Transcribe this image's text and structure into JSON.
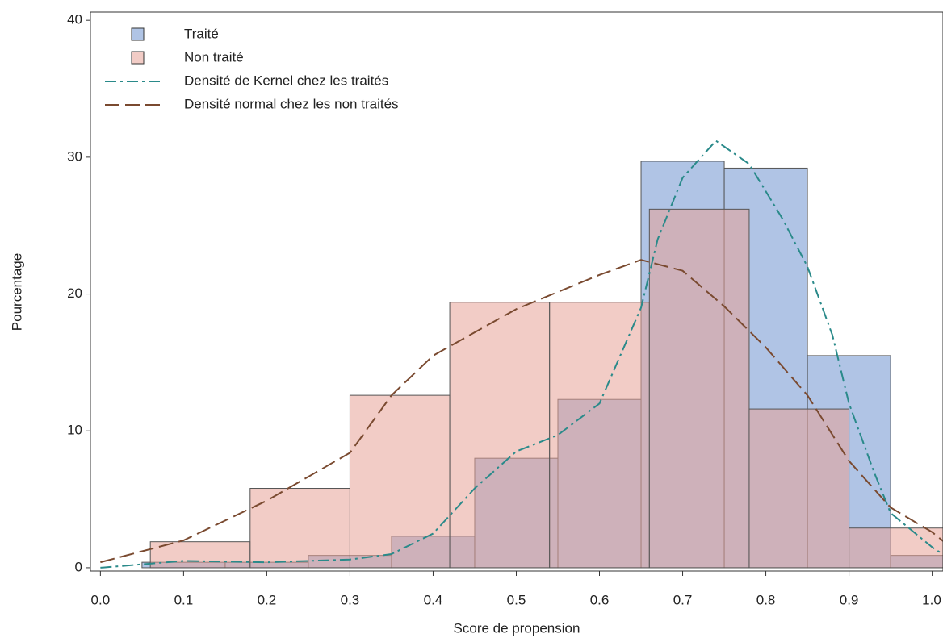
{
  "chart_data": {
    "type": "histogram",
    "x_label": "Score de propension",
    "y_label": "Pourcentage",
    "xlim": [
      -0.012,
      1.013
    ],
    "ylim": [
      -0.24,
      40.6
    ],
    "xticks": [
      {
        "value": 0,
        "label": "0.0"
      },
      0.1,
      0.2,
      0.3,
      0.4,
      0.5,
      0.6,
      0.7,
      0.8,
      0.9,
      {
        "value": 1,
        "label": "1.0"
      }
    ],
    "yticks": [
      0,
      10,
      20,
      30,
      40
    ],
    "legend": "top-left",
    "series": [
      {
        "name": "Traité",
        "kind": "bar",
        "color": "#6f93cf",
        "bins": [
          0.05,
          0.15,
          0.25,
          0.35,
          0.45,
          0.55,
          0.65,
          0.75,
          0.85,
          0.95,
          1.05
        ],
        "values": [
          0.4,
          0.4,
          0.9,
          2.3,
          8.0,
          12.3,
          29.7,
          29.2,
          15.5,
          0.9
        ]
      },
      {
        "name": "Non traité",
        "kind": "bar",
        "color": "#e8a397",
        "bins": [
          0.06,
          0.18,
          0.3,
          0.42,
          0.54,
          0.66,
          0.78,
          0.9,
          1.02
        ],
        "values": [
          1.9,
          5.8,
          12.6,
          19.4,
          19.4,
          26.2,
          11.6,
          2.9
        ]
      },
      {
        "name": "Densité de Kernel chez les traités",
        "kind": "line",
        "linestyle": "dashdot",
        "color": "#2a8a8a",
        "x": [
          0.0,
          0.1,
          0.2,
          0.3,
          0.35,
          0.4,
          0.45,
          0.5,
          0.55,
          0.6,
          0.65,
          0.67,
          0.7,
          0.74,
          0.78,
          0.82,
          0.85,
          0.88,
          0.9,
          0.93,
          0.95,
          1.0,
          1.02
        ],
        "values": [
          0.0,
          0.5,
          0.4,
          0.6,
          1.0,
          2.5,
          5.8,
          8.5,
          9.7,
          12.0,
          19.0,
          24.0,
          28.5,
          31.2,
          29.5,
          25.5,
          22.0,
          17.0,
          12.0,
          7.0,
          4.0,
          1.5,
          0.7
        ]
      },
      {
        "name": "Densité normal chez les non traités",
        "kind": "line",
        "linestyle": "dashed",
        "color": "#7a4a30",
        "x": [
          0.0,
          0.1,
          0.2,
          0.3,
          0.35,
          0.4,
          0.5,
          0.6,
          0.65,
          0.7,
          0.75,
          0.8,
          0.85,
          0.9,
          0.95,
          1.0,
          1.02
        ],
        "values": [
          0.4,
          2.0,
          4.9,
          8.4,
          12.6,
          15.5,
          18.9,
          21.4,
          22.5,
          21.7,
          19.1,
          16.1,
          12.6,
          7.8,
          4.4,
          2.6,
          1.6
        ]
      }
    ]
  }
}
